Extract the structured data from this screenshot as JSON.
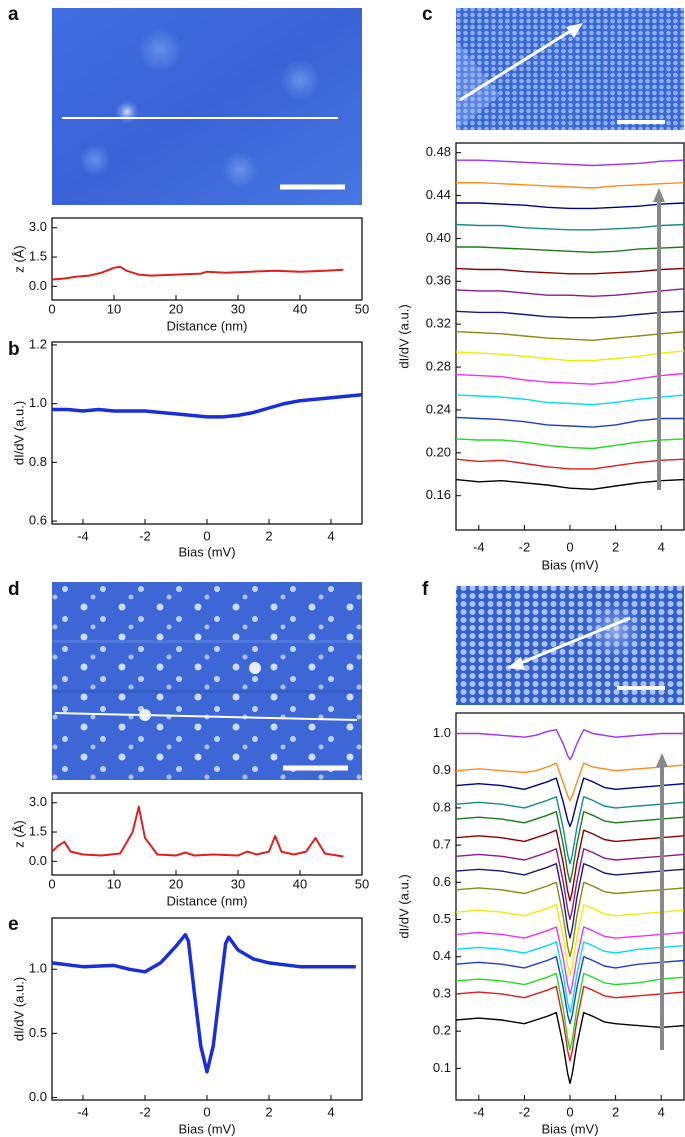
{
  "chart_data": [
    {
      "type": "line",
      "panel": "a",
      "xlabel": "Distance (nm)",
      "ylabel": "z (Å)",
      "xlim": [
        0,
        50
      ],
      "ylim": [
        -0.7,
        3.5
      ],
      "xticks": [
        0,
        10,
        20,
        30,
        40,
        50
      ],
      "yticks": [
        {
          "value": 0,
          "label": "0.0"
        },
        1.5,
        {
          "value": 3,
          "label": "3.0"
        }
      ],
      "color": "#e02020",
      "x": [
        0,
        2,
        4,
        6,
        8,
        10,
        11,
        12,
        14,
        16,
        20,
        24,
        25,
        28,
        32,
        36,
        40,
        44,
        47
      ],
      "values": [
        0.35,
        0.4,
        0.5,
        0.55,
        0.7,
        0.95,
        1.0,
        0.8,
        0.6,
        0.55,
        0.6,
        0.65,
        0.75,
        0.7,
        0.75,
        0.8,
        0.75,
        0.8,
        0.85
      ]
    },
    {
      "type": "line",
      "panel": "b",
      "xlabel": "Bias (mV)",
      "ylabel": "dI/dV (a.u.)",
      "xlim": [
        -5,
        5
      ],
      "ylim": [
        0.59,
        1.21
      ],
      "xticks": [
        -4,
        -2,
        0,
        2,
        4
      ],
      "yticks": [
        0.6,
        0.8,
        {
          "value": 1,
          "label": "1.0"
        },
        1.2
      ],
      "color": "#1a2fd8",
      "x": [
        -5,
        -4.5,
        -4,
        -3.5,
        -3,
        -2.5,
        -2,
        -1.5,
        -1,
        -0.5,
        0,
        0.5,
        1,
        1.5,
        2,
        2.5,
        3,
        3.5,
        4,
        4.5,
        5
      ],
      "values": [
        0.98,
        0.98,
        0.975,
        0.98,
        0.975,
        0.975,
        0.975,
        0.97,
        0.965,
        0.96,
        0.955,
        0.955,
        0.96,
        0.97,
        0.985,
        1.0,
        1.01,
        1.015,
        1.02,
        1.025,
        1.03
      ]
    },
    {
      "type": "line",
      "panel": "c",
      "xlabel": "Bias (mV)",
      "ylabel": "dI/dV (a.u.)",
      "xlim": [
        -5,
        5
      ],
      "ylim": [
        0.128,
        0.489
      ],
      "xticks": [
        -4,
        -2,
        0,
        2,
        4
      ],
      "yticks": [
        0.16,
        {
          "value": 0.2,
          "label": "0.20"
        },
        0.24,
        0.28,
        0.32,
        0.36,
        {
          "value": 0.4,
          "label": "0.40"
        },
        0.44,
        0.48
      ],
      "x": [
        -5,
        -4,
        -3,
        -2,
        -1,
        0,
        1,
        2,
        3,
        4,
        5
      ],
      "series": [
        {
          "color": "#000000",
          "values": [
            0.175,
            0.173,
            0.174,
            0.172,
            0.17,
            0.167,
            0.166,
            0.169,
            0.172,
            0.174,
            0.175
          ]
        },
        {
          "color": "#e41a1c",
          "values": [
            0.194,
            0.192,
            0.193,
            0.19,
            0.187,
            0.185,
            0.185,
            0.188,
            0.191,
            0.193,
            0.194
          ]
        },
        {
          "color": "#22dd22",
          "values": [
            0.213,
            0.212,
            0.212,
            0.21,
            0.207,
            0.205,
            0.204,
            0.207,
            0.21,
            0.212,
            0.213
          ]
        },
        {
          "color": "#1f3fcf",
          "values": [
            0.233,
            0.232,
            0.231,
            0.229,
            0.226,
            0.225,
            0.224,
            0.226,
            0.23,
            0.232,
            0.232
          ]
        },
        {
          "color": "#00e0e8",
          "values": [
            0.254,
            0.253,
            0.252,
            0.25,
            0.247,
            0.246,
            0.245,
            0.247,
            0.25,
            0.252,
            0.254
          ]
        },
        {
          "color": "#ee33ee",
          "values": [
            0.273,
            0.272,
            0.271,
            0.268,
            0.266,
            0.265,
            0.264,
            0.266,
            0.269,
            0.272,
            0.274
          ]
        },
        {
          "color": "#eeee00",
          "values": [
            0.294,
            0.293,
            0.292,
            0.29,
            0.288,
            0.286,
            0.286,
            0.288,
            0.29,
            0.293,
            0.295
          ]
        },
        {
          "color": "#8b8b10",
          "values": [
            0.313,
            0.312,
            0.311,
            0.309,
            0.307,
            0.306,
            0.305,
            0.307,
            0.309,
            0.311,
            0.313
          ]
        },
        {
          "color": "#1a1a7a",
          "values": [
            0.332,
            0.331,
            0.331,
            0.329,
            0.327,
            0.326,
            0.326,
            0.327,
            0.329,
            0.331,
            0.332
          ]
        },
        {
          "color": "#8b1a8b",
          "values": [
            0.352,
            0.351,
            0.351,
            0.349,
            0.347,
            0.347,
            0.346,
            0.347,
            0.349,
            0.351,
            0.353
          ]
        },
        {
          "color": "#8b0000",
          "values": [
            0.372,
            0.371,
            0.371,
            0.369,
            0.368,
            0.367,
            0.367,
            0.368,
            0.369,
            0.371,
            0.372
          ]
        },
        {
          "color": "#1b7a1b",
          "values": [
            0.392,
            0.392,
            0.391,
            0.39,
            0.389,
            0.388,
            0.387,
            0.388,
            0.39,
            0.391,
            0.392
          ]
        },
        {
          "color": "#1a8a8a",
          "values": [
            0.413,
            0.412,
            0.412,
            0.41,
            0.409,
            0.408,
            0.408,
            0.409,
            0.41,
            0.412,
            0.413
          ]
        },
        {
          "color": "#00008b",
          "values": [
            0.433,
            0.433,
            0.432,
            0.431,
            0.429,
            0.428,
            0.428,
            0.429,
            0.43,
            0.432,
            0.433
          ]
        },
        {
          "color": "#ff8c1a",
          "values": [
            0.452,
            0.452,
            0.451,
            0.45,
            0.449,
            0.448,
            0.447,
            0.449,
            0.45,
            0.451,
            0.452
          ]
        },
        {
          "color": "#9b30ff",
          "values": [
            0.473,
            0.473,
            0.472,
            0.471,
            0.47,
            0.469,
            0.468,
            0.469,
            0.47,
            0.472,
            0.473
          ]
        }
      ]
    },
    {
      "type": "line",
      "panel": "d",
      "xlabel": "Distance (nm)",
      "ylabel": "z (Å)",
      "xlim": [
        0,
        50
      ],
      "ylim": [
        -0.7,
        3.5
      ],
      "xticks": [
        0,
        10,
        20,
        30,
        40,
        50
      ],
      "yticks": [
        {
          "value": 0,
          "label": "0.0"
        },
        1.5,
        {
          "value": 3,
          "label": "3.0"
        }
      ],
      "color": "#e02020",
      "x": [
        0,
        1,
        2,
        3,
        5,
        8,
        11,
        13,
        14,
        15,
        17,
        20,
        21.5,
        23,
        26,
        30,
        31.5,
        33,
        35,
        36,
        37,
        39,
        41,
        42.5,
        44,
        46,
        47
      ],
      "values": [
        0.5,
        0.8,
        1.0,
        0.5,
        0.35,
        0.3,
        0.4,
        1.5,
        2.8,
        1.2,
        0.35,
        0.3,
        0.45,
        0.3,
        0.35,
        0.3,
        0.5,
        0.35,
        0.5,
        1.3,
        0.5,
        0.35,
        0.5,
        1.2,
        0.4,
        0.3,
        0.25
      ]
    },
    {
      "type": "line",
      "panel": "e",
      "xlabel": "Bias (mV)",
      "ylabel": "dI/dV (a.u.)",
      "xlim": [
        -5,
        5
      ],
      "ylim": [
        -0.02,
        1.4
      ],
      "xticks": [
        -4,
        -2,
        0,
        2,
        4
      ],
      "yticks": [
        {
          "value": 0,
          "label": "0.0"
        },
        0.5,
        {
          "value": 1,
          "label": "1.0"
        }
      ],
      "color": "#1a2fd8",
      "x": [
        -5,
        -4,
        -3,
        -2.5,
        -2,
        -1.5,
        -1,
        -0.7,
        -0.6,
        -0.4,
        -0.2,
        0,
        0.2,
        0.4,
        0.6,
        0.7,
        1,
        1.5,
        2,
        3,
        4,
        4.8
      ],
      "values": [
        1.05,
        1.02,
        1.03,
        1.0,
        0.98,
        1.05,
        1.18,
        1.27,
        1.22,
        0.8,
        0.4,
        0.2,
        0.4,
        0.8,
        1.2,
        1.25,
        1.15,
        1.08,
        1.05,
        1.02,
        1.02,
        1.02
      ]
    },
    {
      "type": "line",
      "panel": "f",
      "xlabel": "Bias (mV)",
      "ylabel": "dI/dV (a.u.)",
      "xlim": [
        -5,
        5
      ],
      "ylim": [
        0.015,
        1.055
      ],
      "xticks": [
        -4,
        -2,
        0,
        2,
        4
      ],
      "yticks": [
        0.1,
        0.2,
        0.3,
        0.4,
        0.5,
        0.6,
        0.7,
        0.8,
        0.9,
        {
          "value": 1,
          "label": "1.0"
        }
      ],
      "x": [
        -5,
        -4,
        -3,
        -2,
        -1.5,
        -1,
        -0.6,
        -0.3,
        -0.1,
        0,
        0.1,
        0.3,
        0.6,
        1,
        1.5,
        2,
        3,
        4,
        5
      ],
      "series": [
        {
          "color": "#000000",
          "values": [
            0.23,
            0.235,
            0.23,
            0.22,
            0.23,
            0.24,
            0.25,
            0.162,
            0.086,
            0.06,
            0.086,
            0.162,
            0.25,
            0.24,
            0.225,
            0.22,
            0.215,
            0.21,
            0.215
          ]
        },
        {
          "color": "#e41a1c",
          "values": [
            0.3,
            0.305,
            0.3,
            0.29,
            0.3,
            0.31,
            0.32,
            0.228,
            0.147,
            0.12,
            0.147,
            0.228,
            0.32,
            0.31,
            0.295,
            0.29,
            0.295,
            0.3,
            0.305
          ]
        },
        {
          "color": "#22dd22",
          "values": [
            0.335,
            0.34,
            0.335,
            0.325,
            0.335,
            0.345,
            0.355,
            0.261,
            0.178,
            0.15,
            0.178,
            0.261,
            0.355,
            0.345,
            0.33,
            0.325,
            0.33,
            0.34,
            0.345
          ]
        },
        {
          "color": "#1f3fcf",
          "values": [
            0.38,
            0.385,
            0.38,
            0.37,
            0.38,
            0.39,
            0.4,
            0.316,
            0.244,
            0.22,
            0.244,
            0.316,
            0.4,
            0.39,
            0.375,
            0.37,
            0.38,
            0.385,
            0.39
          ]
        },
        {
          "color": "#00e0e8",
          "values": [
            0.42,
            0.425,
            0.42,
            0.41,
            0.42,
            0.43,
            0.44,
            0.352,
            0.276,
            0.25,
            0.276,
            0.352,
            0.44,
            0.43,
            0.415,
            0.41,
            0.42,
            0.425,
            0.43
          ]
        },
        {
          "color": "#ee33ee",
          "values": [
            0.46,
            0.465,
            0.46,
            0.45,
            0.46,
            0.47,
            0.48,
            0.396,
            0.324,
            0.3,
            0.324,
            0.396,
            0.48,
            0.47,
            0.455,
            0.45,
            0.455,
            0.46,
            0.465
          ]
        },
        {
          "color": "#eeee00",
          "values": [
            0.52,
            0.525,
            0.52,
            0.51,
            0.52,
            0.53,
            0.54,
            0.452,
            0.376,
            0.35,
            0.376,
            0.452,
            0.54,
            0.53,
            0.515,
            0.51,
            0.515,
            0.52,
            0.525
          ]
        },
        {
          "color": "#8b8b10",
          "values": [
            0.58,
            0.585,
            0.58,
            0.57,
            0.58,
            0.59,
            0.6,
            0.508,
            0.427,
            0.4,
            0.427,
            0.508,
            0.6,
            0.59,
            0.575,
            0.57,
            0.575,
            0.58,
            0.585
          ]
        },
        {
          "color": "#1a1a7a",
          "values": [
            0.63,
            0.635,
            0.63,
            0.62,
            0.63,
            0.64,
            0.65,
            0.558,
            0.477,
            0.45,
            0.477,
            0.558,
            0.65,
            0.64,
            0.625,
            0.62,
            0.625,
            0.63,
            0.635
          ]
        },
        {
          "color": "#8b1a8b",
          "values": [
            0.67,
            0.675,
            0.67,
            0.66,
            0.67,
            0.68,
            0.69,
            0.602,
            0.526,
            0.5,
            0.526,
            0.602,
            0.69,
            0.68,
            0.665,
            0.66,
            0.665,
            0.67,
            0.675
          ]
        },
        {
          "color": "#8b0000",
          "values": [
            0.72,
            0.725,
            0.72,
            0.71,
            0.72,
            0.73,
            0.74,
            0.652,
            0.576,
            0.55,
            0.576,
            0.652,
            0.74,
            0.73,
            0.715,
            0.71,
            0.715,
            0.72,
            0.725
          ]
        },
        {
          "color": "#1b7a1b",
          "values": [
            0.77,
            0.775,
            0.77,
            0.76,
            0.77,
            0.78,
            0.79,
            0.702,
            0.626,
            0.6,
            0.626,
            0.702,
            0.79,
            0.78,
            0.765,
            0.76,
            0.765,
            0.77,
            0.775
          ]
        },
        {
          "color": "#1a8a8a",
          "values": [
            0.81,
            0.815,
            0.81,
            0.8,
            0.81,
            0.82,
            0.83,
            0.746,
            0.674,
            0.65,
            0.674,
            0.746,
            0.83,
            0.82,
            0.805,
            0.8,
            0.805,
            0.81,
            0.815
          ]
        },
        {
          "color": "#00008b",
          "values": [
            0.86,
            0.865,
            0.86,
            0.85,
            0.86,
            0.87,
            0.88,
            0.816,
            0.767,
            0.75,
            0.767,
            0.816,
            0.88,
            0.87,
            0.855,
            0.85,
            0.855,
            0.86,
            0.865
          ]
        },
        {
          "color": "#ff8c1a",
          "values": [
            0.9,
            0.905,
            0.9,
            0.895,
            0.9,
            0.91,
            0.92,
            0.868,
            0.832,
            0.82,
            0.832,
            0.868,
            0.92,
            0.91,
            0.905,
            0.9,
            0.905,
            0.91,
            0.915
          ]
        },
        {
          "color": "#9b30ff",
          "values": [
            1.0,
            1.0,
            0.995,
            0.99,
            0.995,
            1.005,
            1.01,
            0.972,
            0.94,
            0.93,
            0.94,
            0.972,
            1.01,
            1.0,
            0.995,
            0.99,
            0.995,
            1.0,
            1.0
          ]
        }
      ]
    }
  ]
}
